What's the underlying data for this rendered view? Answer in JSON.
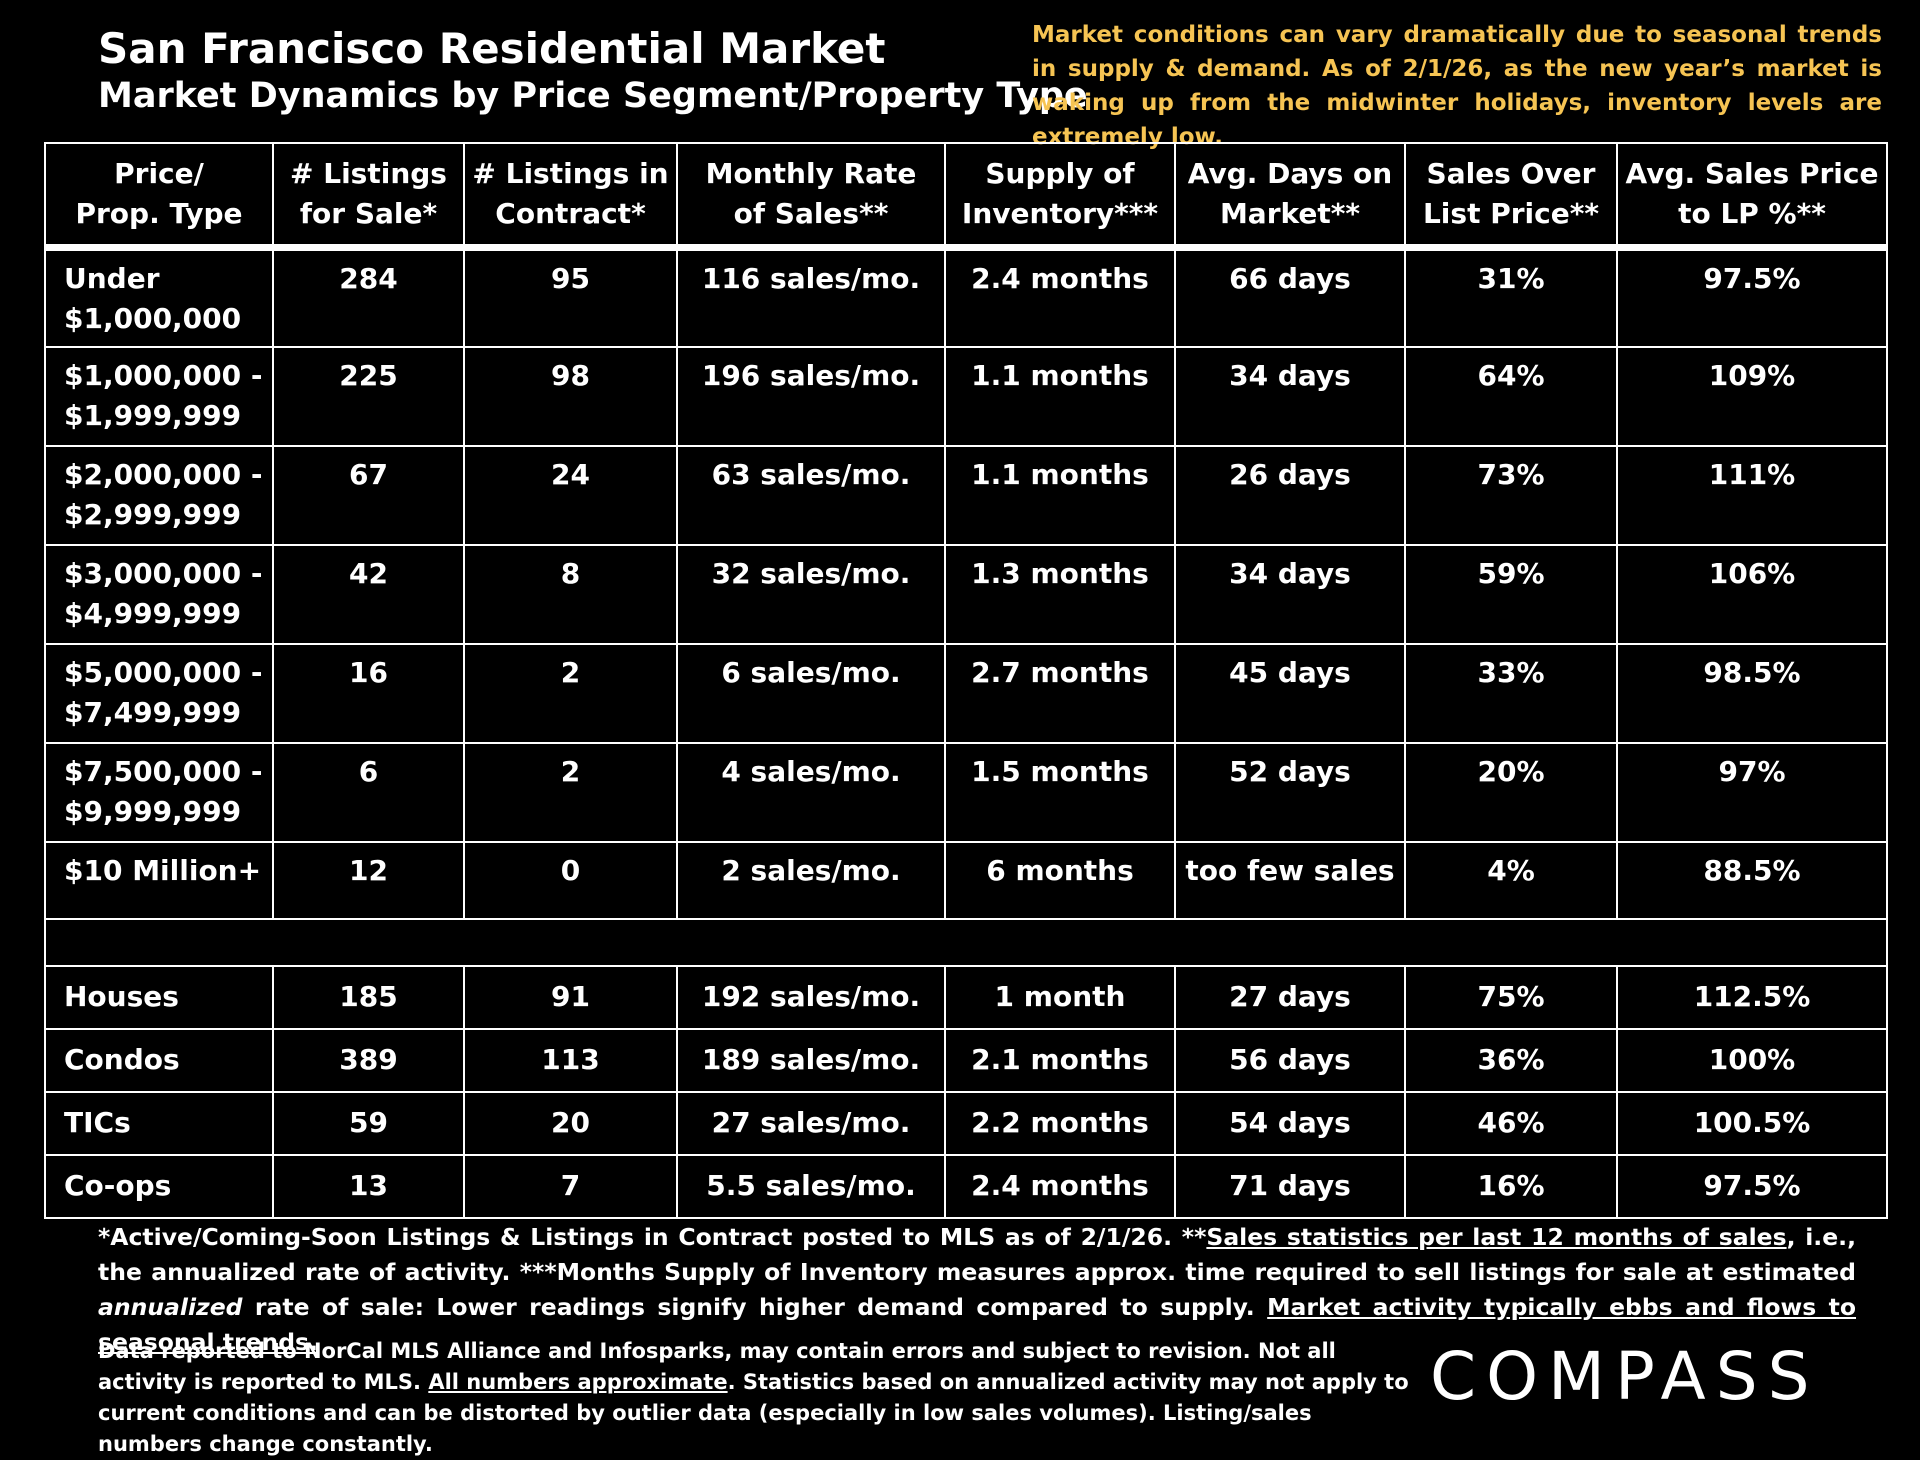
{
  "header": {
    "title": "San Francisco Residential Market",
    "subtitle": "Market Dynamics by Price Segment/Property Type",
    "note": "Market conditions can vary dramatically due to seasonal trends in supply & demand. As of 2/1/26, as the new year’s market is waking up from the midwinter holidays, inventory levels are extremely low."
  },
  "table": {
    "columns": [
      "Price/\nProp. Type",
      "# Listings\nfor Sale*",
      "# Listings in\nContract*",
      "Monthly Rate\nof Sales**",
      "Supply of\nInventory***",
      "Avg. Days on\nMarket**",
      "Sales Over\nList Price**",
      "Avg. Sales Price\nto LP %**"
    ],
    "price_segments": [
      [
        "Under\n$1,000,000",
        "284",
        "95",
        "116 sales/mo.",
        "2.4 months",
        "66 days",
        "31%",
        "97.5%"
      ],
      [
        "$1,000,000 -\n$1,999,999",
        "225",
        "98",
        "196 sales/mo.",
        "1.1 months",
        "34 days",
        "64%",
        "109%"
      ],
      [
        "$2,000,000 -\n$2,999,999",
        "67",
        "24",
        "63 sales/mo.",
        "1.1 months",
        "26 days",
        "73%",
        "111%"
      ],
      [
        "$3,000,000 -\n$4,999,999",
        "42",
        "8",
        "32 sales/mo.",
        "1.3 months",
        "34 days",
        "59%",
        "106%"
      ],
      [
        "$5,000,000 -\n$7,499,999",
        "16",
        "2",
        "6 sales/mo.",
        "2.7 months",
        "45 days",
        "33%",
        "98.5%"
      ],
      [
        "$7,500,000 -\n$9,999,999",
        "6",
        "2",
        "4 sales/mo.",
        "1.5 months",
        "52 days",
        "20%",
        "97%"
      ],
      [
        "$10 Million+",
        "12",
        "0",
        "2 sales/mo.",
        "6 months",
        "too few sales",
        "4%",
        "88.5%"
      ]
    ],
    "property_types": [
      [
        "Houses",
        "185",
        "91",
        "192 sales/mo.",
        "1 month",
        "27 days",
        "75%",
        "112.5%"
      ],
      [
        "Condos",
        "389",
        "113",
        "189 sales/mo.",
        "2.1 months",
        "56 days",
        "36%",
        "100%"
      ],
      [
        "TICs",
        "59",
        "20",
        "27 sales/mo.",
        "2.2 months",
        "54 days",
        "46%",
        "100.5%"
      ],
      [
        "Co-ops",
        "13",
        "7",
        "5.5 sales/mo.",
        "2.4 months",
        "71 days",
        "16%",
        "97.5%"
      ]
    ]
  },
  "footer": {
    "notes": [
      {
        "text": "*Active/Coming-Soon Listings & Listings in Contract posted to MLS as of 2/1/26. **"
      },
      {
        "text": "Sales statistics per last 12 months of sales",
        "underline": true
      },
      {
        "text": ", i.e., the annualized rate of activity.  ***Months Supply of Inventory measures approx. time required to sell listings for sale at estimated "
      },
      {
        "text": "annualized",
        "italic": true
      },
      {
        "text": " rate of sale:  Lower readings signify higher demand compared to supply. "
      },
      {
        "text": "Market activity typically ebbs and flows to seasonal trends.",
        "underline": true
      }
    ],
    "disclaimer": [
      {
        "text": "Data reported to NorCal MLS Alliance and Infosparks, may contain errors and subject to revision.  Not all activity is reported to MLS. "
      },
      {
        "text": "All numbers approximate",
        "underline": true
      },
      {
        "text": ". Statistics based on annualized activity may not apply to current conditions and can be distorted by outlier data (especially in low sales volumes). Listing/sales numbers change constantly."
      }
    ],
    "logo": "COMPASS"
  }
}
